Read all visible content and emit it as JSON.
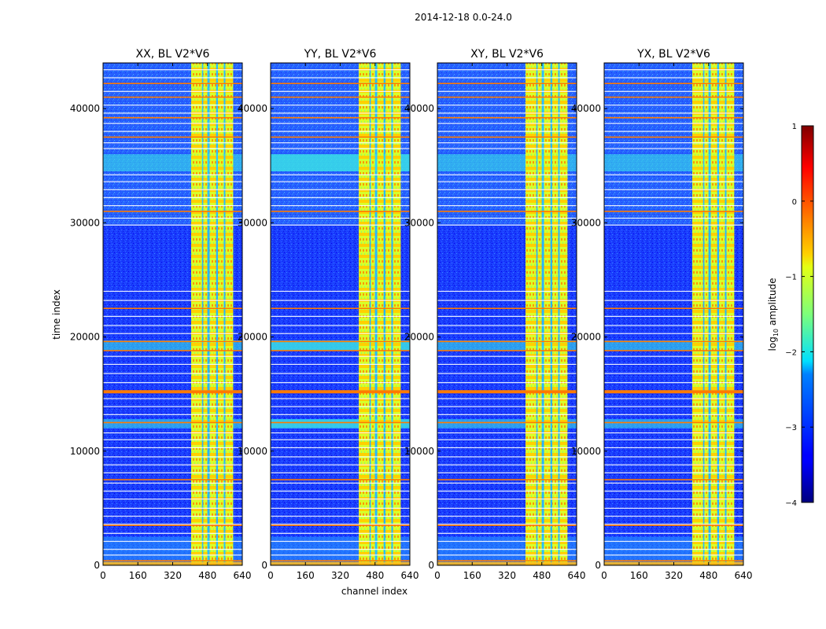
{
  "chart_data": {
    "type": "heatmap",
    "suptitle": "2014-12-18 0.0-24.0",
    "panels": [
      {
        "title": "XX, BL V2*V6"
      },
      {
        "title": "YY, BL V2*V6"
      },
      {
        "title": "XY, BL V2*V6"
      },
      {
        "title": "YX, BL V2*V6"
      }
    ],
    "xlabel": "channel index",
    "ylabel": "time index",
    "xlim": [
      0,
      640
    ],
    "ylim": [
      0,
      44000
    ],
    "xticks": [
      0,
      160,
      320,
      480,
      640
    ],
    "xtick_labels": [
      "0",
      "160",
      "320",
      "480",
      "640"
    ],
    "yticks": [
      0,
      10000,
      20000,
      30000,
      40000
    ],
    "ytick_labels": [
      "0",
      "10000",
      "20000",
      "30000",
      "40000"
    ],
    "colorbar": {
      "label": "log10 amplitude",
      "label_base": "log",
      "label_sub": "10",
      "label_rest": " amplitude",
      "range": [
        -4,
        1
      ],
      "ticks": [
        1,
        0,
        -1,
        -2,
        -3,
        -4
      ],
      "tick_labels": [
        "1",
        "0",
        "−1",
        "−2",
        "−3",
        "−4"
      ],
      "colormap": "jet"
    },
    "features": {
      "hot_channel_bands": [
        [
          405,
          455
        ],
        [
          460,
          480
        ],
        [
          490,
          520
        ],
        [
          528,
          555
        ],
        [
          562,
          598
        ]
      ],
      "hot_channel_gaps": [
        [
          455,
          460
        ],
        [
          480,
          490
        ],
        [
          520,
          528
        ],
        [
          555,
          562
        ]
      ],
      "orange_time_rows": [
        400,
        3500,
        7500,
        12500,
        15200,
        18800,
        19600,
        22500,
        31000,
        37500,
        39200,
        41000,
        42200
      ],
      "cyan_time_bands": [
        [
          12000,
          12800
        ],
        [
          18800,
          19700
        ],
        [
          34500,
          36000
        ]
      ],
      "blank_time_rows": [
        200,
        900,
        1400,
        2100,
        2800,
        3600,
        4300,
        5000,
        5800,
        6500,
        7200,
        8100,
        8800,
        9500,
        10300,
        11000,
        11600,
        13200,
        13900,
        14600,
        16000,
        16800,
        17600,
        18300,
        20300,
        21000,
        21800,
        23200,
        24000,
        29800,
        30400,
        31500,
        32200,
        32900,
        33600,
        34200,
        36500,
        37000,
        38000,
        38700,
        39600,
        40300,
        41500,
        42700,
        43400
      ],
      "busy_time_range": [
        29800,
        44000
      ],
      "quiet_time_range": [
        22000,
        29800
      ]
    }
  }
}
